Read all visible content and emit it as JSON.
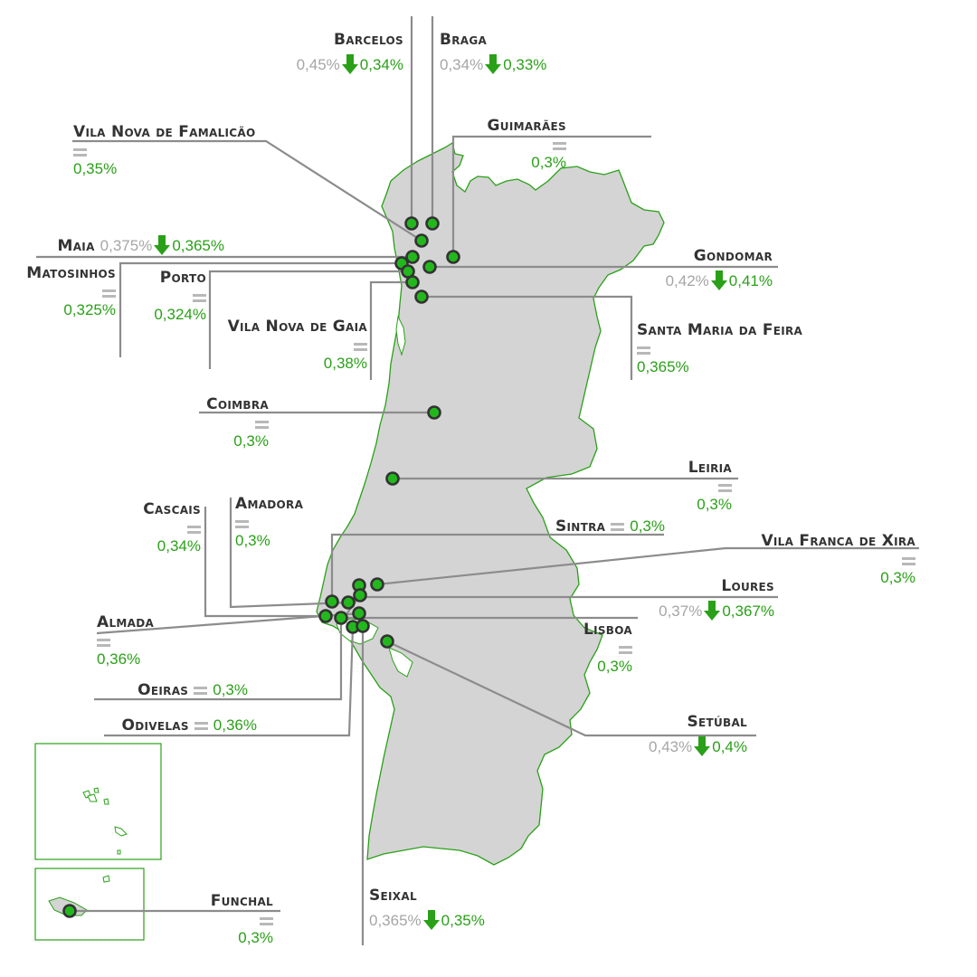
{
  "map": {
    "colors": {
      "land": "#d4d4d4",
      "border": "#2aa018",
      "leader_line": "#8c8c8c",
      "marker_fill": "#22b81c",
      "marker_stroke": "#333333",
      "old_value": "#a6a6a6",
      "new_value": "#2aa018",
      "arrow": "#2aa018",
      "equal_sign": "#b8b8b8"
    },
    "icons": {
      "decrease": "down-arrow-icon",
      "unchanged": "equal-sign-icon"
    },
    "cities": [
      {
        "id": "barcelos",
        "name": "Barcelos",
        "old": "0,45%",
        "new": "0,34%",
        "trend": "down"
      },
      {
        "id": "braga",
        "name": "Braga",
        "old": "0,34%",
        "new": "0,33%",
        "trend": "down"
      },
      {
        "id": "guimaraes",
        "name": "Guimarães",
        "old": "",
        "new": "0,3%",
        "trend": "equal"
      },
      {
        "id": "famalicao",
        "name": "Vila Nova de Famalicão",
        "old": "",
        "new": "0,35%",
        "trend": "equal"
      },
      {
        "id": "maia",
        "name": "Maia",
        "old": "0,375%",
        "new": "0,365%",
        "trend": "down"
      },
      {
        "id": "matosinhos",
        "name": "Matosinhos",
        "old": "",
        "new": "0,325%",
        "trend": "equal"
      },
      {
        "id": "porto",
        "name": "Porto",
        "old": "",
        "new": "0,324%",
        "trend": "equal"
      },
      {
        "id": "gondomar",
        "name": "Gondomar",
        "old": "0,42%",
        "new": "0,41%",
        "trend": "down"
      },
      {
        "id": "gaia",
        "name": "Vila Nova de Gaia",
        "old": "",
        "new": "0,38%",
        "trend": "equal"
      },
      {
        "id": "feira",
        "name": "Santa Maria da Feira",
        "old": "",
        "new": "0,365%",
        "trend": "equal"
      },
      {
        "id": "coimbra",
        "name": "Coimbra",
        "old": "",
        "new": "0,3%",
        "trend": "equal"
      },
      {
        "id": "leiria",
        "name": "Leiria",
        "old": "",
        "new": "0,3%",
        "trend": "equal"
      },
      {
        "id": "cascais",
        "name": "Cascais",
        "old": "",
        "new": "0,34%",
        "trend": "equal"
      },
      {
        "id": "amadora",
        "name": "Amadora",
        "old": "",
        "new": "0,3%",
        "trend": "equal"
      },
      {
        "id": "sintra",
        "name": "Sintra",
        "old": "",
        "new": "0,3%",
        "trend": "equal"
      },
      {
        "id": "vfxira",
        "name": "Vila Franca de Xira",
        "old": "",
        "new": "0,3%",
        "trend": "equal"
      },
      {
        "id": "loures",
        "name": "Loures",
        "old": "0,37%",
        "new": "0,367%",
        "trend": "down"
      },
      {
        "id": "almada",
        "name": "Almada",
        "old": "",
        "new": "0,36%",
        "trend": "equal"
      },
      {
        "id": "lisboa",
        "name": "Lisboa",
        "old": "",
        "new": "0,3%",
        "trend": "equal"
      },
      {
        "id": "oeiras",
        "name": "Oeiras",
        "old": "",
        "new": "0,3%",
        "trend": "equal"
      },
      {
        "id": "odivelas",
        "name": "Odivelas",
        "old": "",
        "new": "0,36%",
        "trend": "equal"
      },
      {
        "id": "setubal",
        "name": "Setúbal",
        "old": "0,43%",
        "new": "0,4%",
        "trend": "down"
      },
      {
        "id": "seixal",
        "name": "Seixal",
        "old": "0,365%",
        "new": "0,35%",
        "trend": "down"
      },
      {
        "id": "funchal",
        "name": "Funchal",
        "old": "",
        "new": "0,3%",
        "trend": "equal"
      }
    ]
  }
}
